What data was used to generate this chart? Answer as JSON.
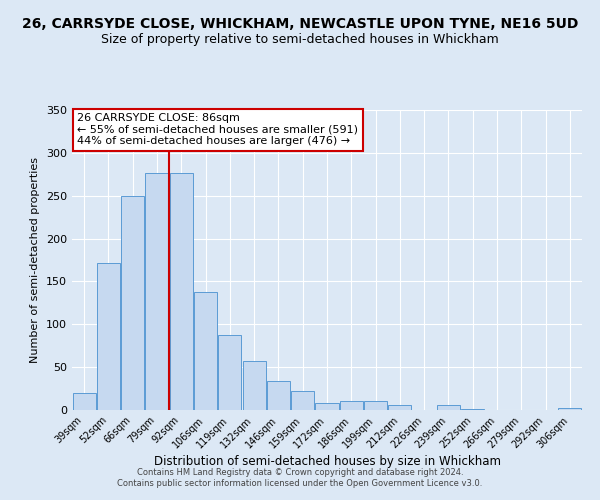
{
  "title": "26, CARRSYDE CLOSE, WHICKHAM, NEWCASTLE UPON TYNE, NE16 5UD",
  "subtitle": "Size of property relative to semi-detached houses in Whickham",
  "xlabel": "Distribution of semi-detached houses by size in Whickham",
  "ylabel": "Number of semi-detached properties",
  "categories": [
    "39sqm",
    "52sqm",
    "66sqm",
    "79sqm",
    "92sqm",
    "106sqm",
    "119sqm",
    "132sqm",
    "146sqm",
    "159sqm",
    "172sqm",
    "186sqm",
    "199sqm",
    "212sqm",
    "226sqm",
    "239sqm",
    "252sqm",
    "266sqm",
    "279sqm",
    "292sqm",
    "306sqm"
  ],
  "values": [
    20,
    172,
    250,
    277,
    277,
    138,
    87,
    57,
    34,
    22,
    8,
    10,
    10,
    6,
    0,
    6,
    1,
    0,
    0,
    0,
    2
  ],
  "bar_color": "#c6d9f0",
  "bar_edge_color": "#5b9bd5",
  "vline_color": "#cc0000",
  "annotation_title": "26 CARRSYDE CLOSE: 86sqm",
  "annotation_line1": "← 55% of semi-detached houses are smaller (591)",
  "annotation_line2": "44% of semi-detached houses are larger (476) →",
  "annotation_box_color": "#ffffff",
  "annotation_box_edge": "#cc0000",
  "footer1": "Contains HM Land Registry data © Crown copyright and database right 2024.",
  "footer2": "Contains public sector information licensed under the Open Government Licence v3.0.",
  "ylim": [
    0,
    350
  ],
  "yticks": [
    0,
    50,
    100,
    150,
    200,
    250,
    300,
    350
  ],
  "bg_color": "#dce8f5",
  "plot_bg_color": "#dce8f5",
  "title_fontsize": 10,
  "subtitle_fontsize": 9
}
